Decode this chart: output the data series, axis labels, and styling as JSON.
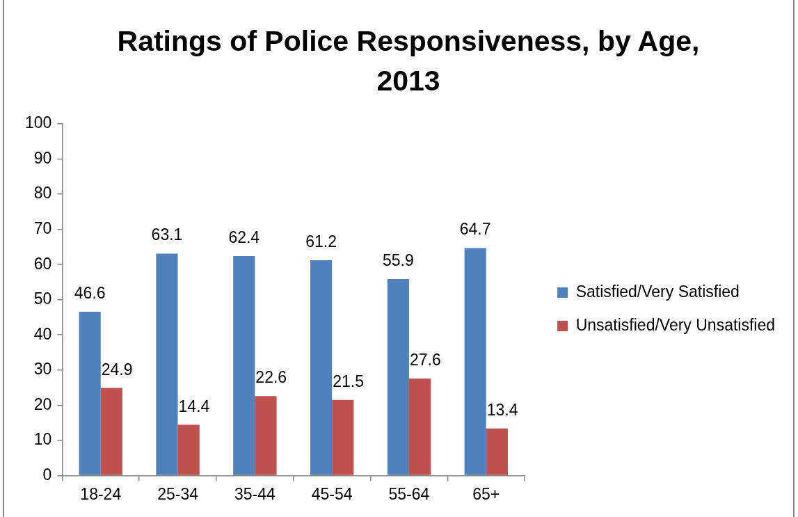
{
  "chart_data": {
    "type": "bar",
    "title": "Ratings of Police Responsiveness, by Age, 2013",
    "categories": [
      "18-24",
      "25-34",
      "35-44",
      "45-54",
      "55-64",
      "65+"
    ],
    "series": [
      {
        "name": "Satisfied/Very Satisfied",
        "color": "#4f81bd",
        "values": [
          46.6,
          63.1,
          62.4,
          61.2,
          55.9,
          64.7
        ]
      },
      {
        "name": "Unsatisfied/Very Unsatisfied",
        "color": "#c0504d",
        "values": [
          24.9,
          14.4,
          22.6,
          21.5,
          27.6,
          13.4
        ]
      }
    ],
    "ylim": [
      0,
      100
    ],
    "yticks": [
      0,
      10,
      20,
      30,
      40,
      50,
      60,
      70,
      80,
      90,
      100
    ],
    "data_labels": true,
    "legend": "right"
  }
}
